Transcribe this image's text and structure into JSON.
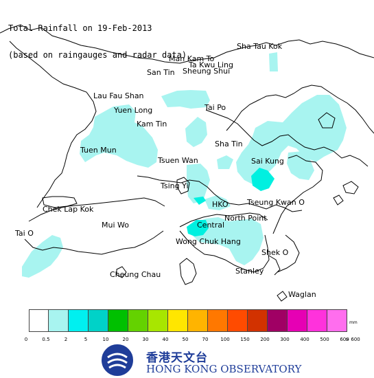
{
  "title": {
    "line1": "Total Rainfall on 19-Feb-2013",
    "line2": "(based on raingauges and radar data)"
  },
  "places": [
    {
      "id": "sha-tau-kok",
      "label": "Sha Tau Kok"
    },
    {
      "id": "man-kam-to",
      "label": "Man Kam To"
    },
    {
      "id": "ta-kwu-ling",
      "label": "Ta Kwu Ling"
    },
    {
      "id": "san-tin",
      "label": "San Tin"
    },
    {
      "id": "sheung-shui",
      "label": "Sheung Shui"
    },
    {
      "id": "lau-fau-shan",
      "label": "Lau Fau Shan"
    },
    {
      "id": "yuen-long",
      "label": "Yuen Long"
    },
    {
      "id": "tai-po",
      "label": "Tai Po"
    },
    {
      "id": "kam-tin",
      "label": "Kam Tin"
    },
    {
      "id": "sha-tin",
      "label": "Sha Tin"
    },
    {
      "id": "tuen-mun",
      "label": "Tuen Mun"
    },
    {
      "id": "tsuen-wan",
      "label": "Tsuen Wan"
    },
    {
      "id": "sai-kung",
      "label": "Sai Kung"
    },
    {
      "id": "tsing-yi",
      "label": "Tsing Yi"
    },
    {
      "id": "hko",
      "label": "HKO"
    },
    {
      "id": "tseung-kwan-o",
      "label": "Tseung Kwan O"
    },
    {
      "id": "chek-lap-kok",
      "label": "Chek Lap Kok"
    },
    {
      "id": "north-point",
      "label": "North Point"
    },
    {
      "id": "mui-wo",
      "label": "Mui Wo"
    },
    {
      "id": "central",
      "label": "Central"
    },
    {
      "id": "tai-o",
      "label": "Tai O"
    },
    {
      "id": "wong-chuk-hang",
      "label": "Wong Chuk Hang"
    },
    {
      "id": "shek-o",
      "label": "Shek O"
    },
    {
      "id": "cheung-chau",
      "label": "Cheung Chau"
    },
    {
      "id": "stanley",
      "label": "Stanley"
    },
    {
      "id": "waglan",
      "label": "Waglan"
    }
  ],
  "rainfall_colors": {
    "light": "#a8f4f0",
    "moderate": "#00f0e0"
  },
  "legend": {
    "unit": "mm",
    "colors": [
      "#ffffff",
      "#a8f4f0",
      "#00f0f0",
      "#00d2c8",
      "#00c000",
      "#64d200",
      "#a8e600",
      "#ffe600",
      "#ffb400",
      "#ff7800",
      "#ff4b00",
      "#d23200",
      "#a00064",
      "#e600b4",
      "#ff32dc",
      "#ff6eee",
      "#ff9ef4",
      "#ffd2fa"
    ],
    "labels": [
      "0",
      "0.5",
      "2",
      "5",
      "10",
      "20",
      "30",
      "40",
      "50",
      "70",
      "100",
      "150",
      "200",
      "300",
      "400",
      "500",
      "600",
      "> 600"
    ]
  },
  "logo": {
    "chinese": "香港天文台",
    "english": "HONG KONG OBSERVATORY",
    "color": "#1f3d99"
  }
}
